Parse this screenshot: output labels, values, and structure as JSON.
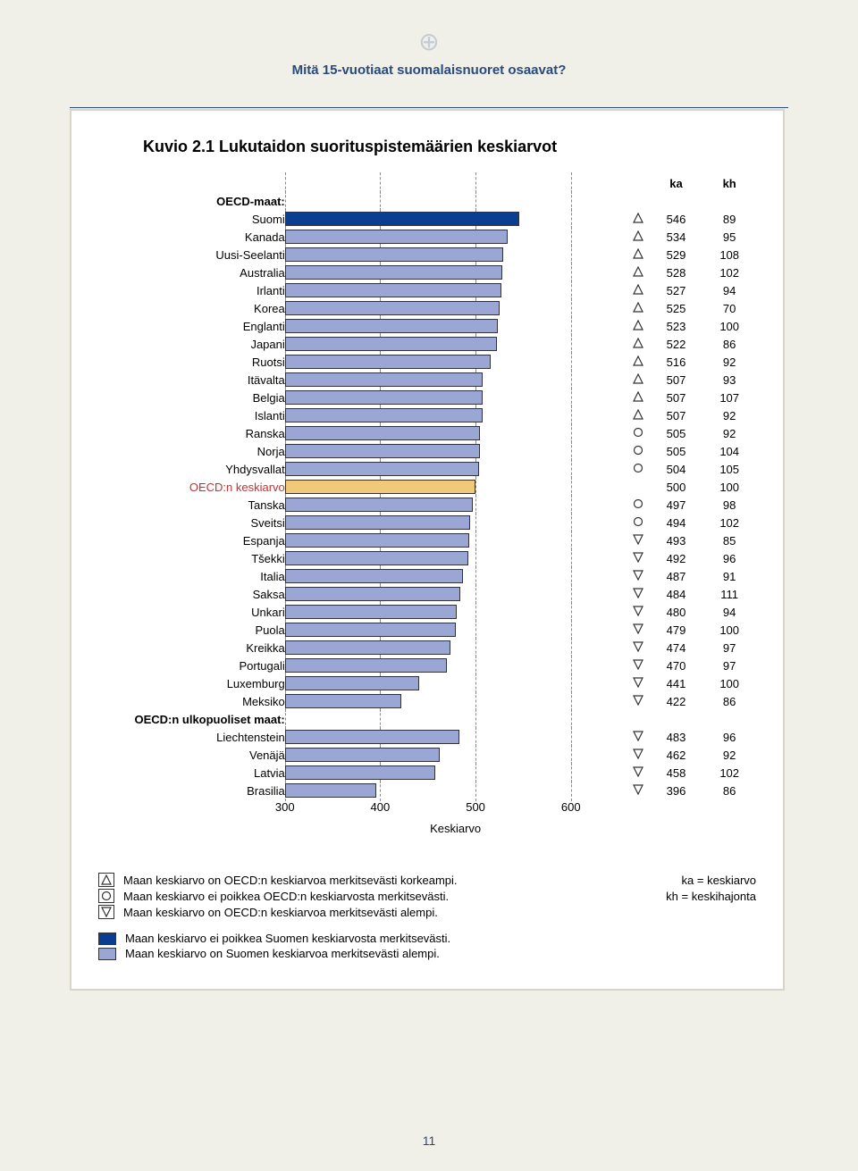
{
  "page": {
    "subtitle": "Mitä 15-vuotiaat suomalaisnuoret osaavat?",
    "number": "11"
  },
  "chart": {
    "type": "bar",
    "title": "Kuvio 2.1 Lukutaidon suorituspistemäärien keskiarvot",
    "header_ka": "ka",
    "header_kh": "kh",
    "section1": "OECD-maat:",
    "section2": "OECD:n ulkopuoliset maat:",
    "oecd_avg_label": "OECD:n keskiarvo",
    "axis_title": "Keskiarvo",
    "xlim": [
      300,
      600
    ],
    "xticks": [
      300,
      400,
      500,
      600
    ],
    "colors": {
      "bar_default": "#9aa6d4",
      "bar_border": "#333333",
      "bar_finland": "#0b3d91",
      "bar_oecd": "#f0c97a",
      "grid": "#888888",
      "label_oecd": "#c9302c"
    },
    "symbols": {
      "above": "triangle-up",
      "same": "circle",
      "below": "triangle-down"
    },
    "rows": [
      {
        "label": "Suomi",
        "ka": 546,
        "kh": 89,
        "sym": "above",
        "color": "finland"
      },
      {
        "label": "Kanada",
        "ka": 534,
        "kh": 95,
        "sym": "above",
        "color": "default"
      },
      {
        "label": "Uusi-Seelanti",
        "ka": 529,
        "kh": 108,
        "sym": "above",
        "color": "default"
      },
      {
        "label": "Australia",
        "ka": 528,
        "kh": 102,
        "sym": "above",
        "color": "default"
      },
      {
        "label": "Irlanti",
        "ka": 527,
        "kh": 94,
        "sym": "above",
        "color": "default"
      },
      {
        "label": "Korea",
        "ka": 525,
        "kh": 70,
        "sym": "above",
        "color": "default"
      },
      {
        "label": "Englanti",
        "ka": 523,
        "kh": 100,
        "sym": "above",
        "color": "default"
      },
      {
        "label": "Japani",
        "ka": 522,
        "kh": 86,
        "sym": "above",
        "color": "default"
      },
      {
        "label": "Ruotsi",
        "ka": 516,
        "kh": 92,
        "sym": "above",
        "color": "default"
      },
      {
        "label": "Itävalta",
        "ka": 507,
        "kh": 93,
        "sym": "above",
        "color": "default"
      },
      {
        "label": "Belgia",
        "ka": 507,
        "kh": 107,
        "sym": "above",
        "color": "default"
      },
      {
        "label": "Islanti",
        "ka": 507,
        "kh": 92,
        "sym": "above",
        "color": "default"
      },
      {
        "label": "Ranska",
        "ka": 505,
        "kh": 92,
        "sym": "same",
        "color": "default"
      },
      {
        "label": "Norja",
        "ka": 505,
        "kh": 104,
        "sym": "same",
        "color": "default"
      },
      {
        "label": "Yhdysvallat",
        "ka": 504,
        "kh": 105,
        "sym": "same",
        "color": "default"
      },
      {
        "label": "OECD:n keskiarvo",
        "ka": 500,
        "kh": 100,
        "sym": "",
        "color": "oecd",
        "oecd": true
      },
      {
        "label": "Tanska",
        "ka": 497,
        "kh": 98,
        "sym": "same",
        "color": "default"
      },
      {
        "label": "Sveitsi",
        "ka": 494,
        "kh": 102,
        "sym": "same",
        "color": "default"
      },
      {
        "label": "Espanja",
        "ka": 493,
        "kh": 85,
        "sym": "below",
        "color": "default"
      },
      {
        "label": "Tšekki",
        "ka": 492,
        "kh": 96,
        "sym": "below",
        "color": "default"
      },
      {
        "label": "Italia",
        "ka": 487,
        "kh": 91,
        "sym": "below",
        "color": "default"
      },
      {
        "label": "Saksa",
        "ka": 484,
        "kh": 111,
        "sym": "below",
        "color": "default"
      },
      {
        "label": "Unkari",
        "ka": 480,
        "kh": 94,
        "sym": "below",
        "color": "default"
      },
      {
        "label": "Puola",
        "ka": 479,
        "kh": 100,
        "sym": "below",
        "color": "default"
      },
      {
        "label": "Kreikka",
        "ka": 474,
        "kh": 97,
        "sym": "below",
        "color": "default"
      },
      {
        "label": "Portugali",
        "ka": 470,
        "kh": 97,
        "sym": "below",
        "color": "default"
      },
      {
        "label": "Luxemburg",
        "ka": 441,
        "kh": 100,
        "sym": "below",
        "color": "default"
      },
      {
        "label": "Meksiko",
        "ka": 422,
        "kh": 86,
        "sym": "below",
        "color": "default"
      }
    ],
    "rows2": [
      {
        "label": "Liechtenstein",
        "ka": 483,
        "kh": 96,
        "sym": "below",
        "color": "default"
      },
      {
        "label": "Venäjä",
        "ka": 462,
        "kh": 92,
        "sym": "below",
        "color": "default"
      },
      {
        "label": "Latvia",
        "ka": 458,
        "kh": 102,
        "sym": "below",
        "color": "default"
      },
      {
        "label": "Brasilia",
        "ka": 396,
        "kh": 86,
        "sym": "below",
        "color": "default"
      }
    ]
  },
  "legend": {
    "sym_above": "Maan keskiarvo on OECD:n keskiarvoa merkitsevästi korkeampi.",
    "sym_same": "Maan keskiarvo ei poikkea OECD:n keskiarvosta merkitsevästi.",
    "sym_below": "Maan keskiarvo on OECD:n keskiarvoa merkitsevästi alempi.",
    "ka_expl": "ka = keskiarvo",
    "kh_expl": "kh = keskihajonta",
    "color_finland": "Maan keskiarvo ei poikkea Suomen keskiarvosta merkitsevästi.",
    "color_default": "Maan keskiarvo on Suomen keskiarvoa merkitsevästi alempi."
  }
}
